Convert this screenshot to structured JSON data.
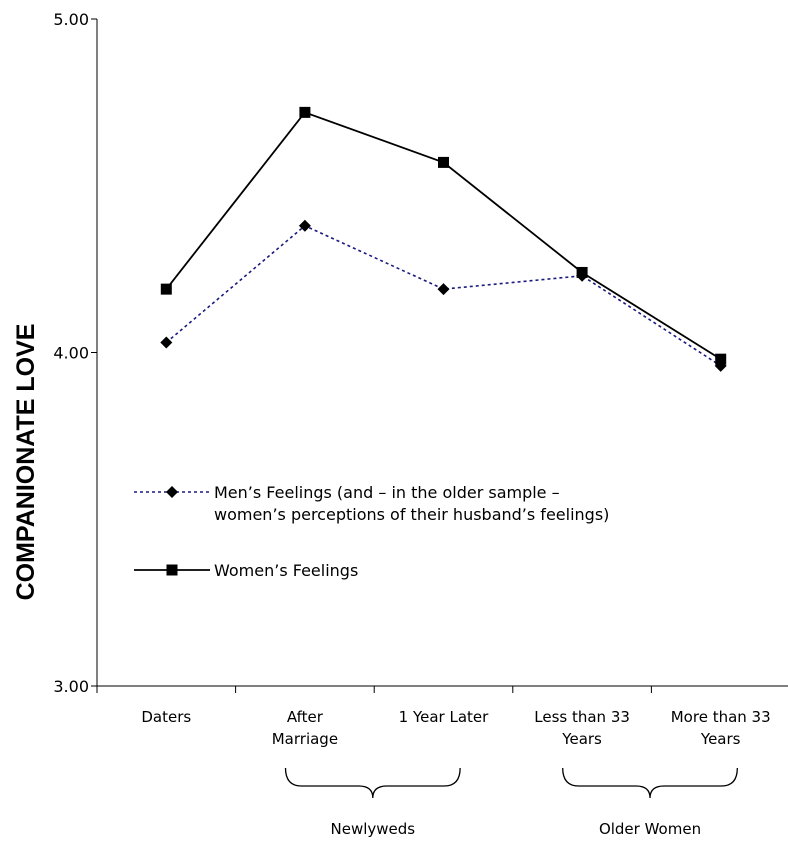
{
  "chart_data": {
    "type": "line",
    "title": "",
    "xlabel": "",
    "ylabel": "COMPANIONATE LOVE",
    "ylim": [
      3.0,
      5.0
    ],
    "yticks": [
      "3.00",
      "4.00",
      "5.00"
    ],
    "grid": false,
    "legend_position": "center-left",
    "categories": [
      [
        "Daters"
      ],
      [
        "After",
        "Marriage"
      ],
      [
        "1 Year Later"
      ],
      [
        "Less than 33",
        "Years"
      ],
      [
        "More than 33",
        "Years"
      ]
    ],
    "groups": [
      {
        "label": "Newlyweds",
        "span": [
          1,
          2
        ]
      },
      {
        "label": "Older Women",
        "span": [
          3,
          4
        ]
      }
    ],
    "series": [
      {
        "name": "Men’s Feelings (and – in the older sample – women’s perceptions of their husband’s feelings)",
        "legend_lines": [
          "Men’s Feelings (and – in the older sample –",
          "women’s perceptions of their husband’s feelings)"
        ],
        "values": [
          4.03,
          4.38,
          4.19,
          4.23,
          3.96
        ],
        "marker": "diamond",
        "line_style": "dotted",
        "color": "#1a1a80"
      },
      {
        "name": "Women’s Feelings",
        "legend_lines": [
          "Women’s Feelings"
        ],
        "values": [
          4.19,
          4.72,
          4.57,
          4.24,
          3.98
        ],
        "marker": "square",
        "line_style": "solid",
        "color": "#000000"
      }
    ]
  }
}
